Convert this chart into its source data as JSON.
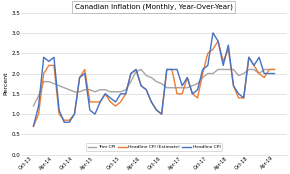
{
  "title": "Canadian Inflation (Monthly, Year-Over-Year)",
  "ylabel": "Percent",
  "ylim": [
    0.0,
    3.5
  ],
  "yticks": [
    0.0,
    0.5,
    1.0,
    1.5,
    2.0,
    2.5,
    3.0,
    3.5
  ],
  "x_labels": [
    "Oct-13",
    "Apr-14",
    "Oct-14",
    "Apr-15",
    "Oct-15",
    "Apr-16",
    "Oct-16",
    "Apr-17",
    "Oct-17",
    "Apr-18",
    "Oct-18",
    "Apr-19"
  ],
  "headline_cpi": [
    0.7,
    1.2,
    2.4,
    2.3,
    2.4,
    1.1,
    0.8,
    0.8,
    1.0,
    1.9,
    2.0,
    1.1,
    1.0,
    1.3,
    1.5,
    1.4,
    1.3,
    1.5,
    1.5,
    2.0,
    2.1,
    1.7,
    1.6,
    1.3,
    1.1,
    1.0,
    2.1,
    2.1,
    2.1,
    1.7,
    1.9,
    1.5,
    1.6,
    2.1,
    2.2,
    3.0,
    2.8,
    2.2,
    2.7,
    1.7,
    1.5,
    1.4,
    2.4,
    2.2,
    2.4,
    2.0,
    2.0,
    2.0
  ],
  "headline_est": [
    0.7,
    1.0,
    2.0,
    2.2,
    2.2,
    1.0,
    0.85,
    0.85,
    1.0,
    1.9,
    2.1,
    1.3,
    1.3,
    1.3,
    1.5,
    1.3,
    1.2,
    1.3,
    1.5,
    2.0,
    2.1,
    1.7,
    1.6,
    1.3,
    1.1,
    1.0,
    2.1,
    2.1,
    1.5,
    1.5,
    1.9,
    1.5,
    1.4,
    2.0,
    2.5,
    2.6,
    2.8,
    2.3,
    2.6,
    1.7,
    1.4,
    1.4,
    2.4,
    2.2,
    2.0,
    1.9,
    2.1,
    2.1
  ],
  "trim_cpi": [
    1.2,
    1.45,
    1.8,
    1.8,
    1.75,
    1.7,
    1.65,
    1.6,
    1.55,
    1.55,
    1.6,
    1.6,
    1.55,
    1.6,
    1.6,
    1.55,
    1.55,
    1.55,
    1.6,
    1.8,
    2.05,
    2.1,
    1.95,
    1.9,
    1.8,
    1.75,
    1.65,
    1.65,
    1.65,
    1.65,
    1.65,
    1.7,
    1.75,
    1.9,
    2.0,
    2.0,
    2.1,
    2.1,
    2.1,
    2.1,
    1.95,
    2.0,
    2.1,
    2.1,
    2.0,
    2.1,
    2.1,
    2.1
  ],
  "color_headline": "#4472c4",
  "color_estimate": "#ed7d31",
  "color_trim": "#a5a5a5",
  "background": "#ffffff",
  "plot_bg": "#ffffff",
  "grid_color": "#d9d9d9",
  "title_box_color": "#ffffff",
  "title_box_edge": "#aaaaaa"
}
